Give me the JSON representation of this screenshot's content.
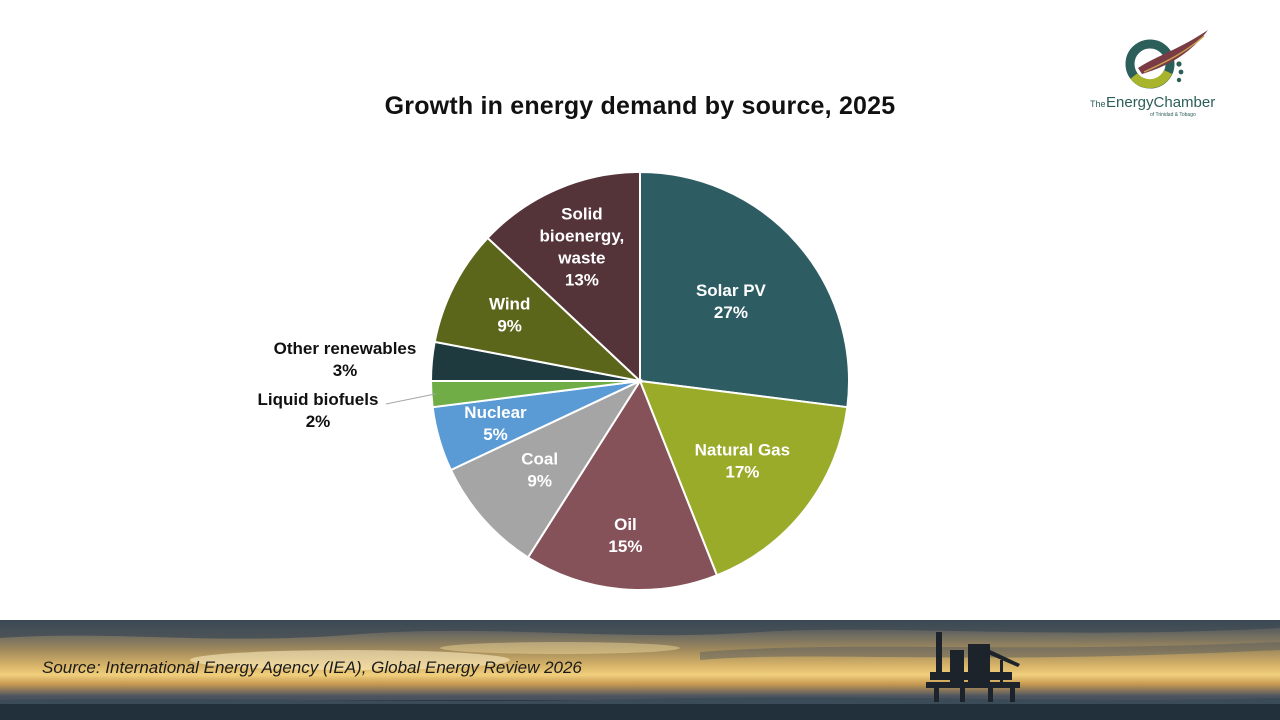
{
  "header": {
    "title": "Growth in energy demand by source, 2025"
  },
  "logo": {
    "line1_prefix": "The",
    "line1_name": "EnergyChamber",
    "line2": "of Trinidad & Tobago",
    "colors": {
      "ring": "#2c5e5a",
      "ring_accent": "#a8b42c",
      "swoosh": "#7a3b45",
      "text": "#2c5e5a"
    }
  },
  "footer": {
    "source": "Source: International Energy Agency (IEA), Global Energy Review 2026"
  },
  "chart_data": {
    "type": "pie",
    "title": "Growth in energy demand by source, 2025",
    "start_angle_deg": 0,
    "direction": "clockwise",
    "value_unit": "%",
    "legend": "none",
    "slices": [
      {
        "label": [
          "Solar PV"
        ],
        "value": 27,
        "pct_label": "27%",
        "color": "#2d5d63",
        "label_color": "#ffffff",
        "label_inside": true
      },
      {
        "label": [
          "Natural Gas"
        ],
        "value": 17,
        "pct_label": "17%",
        "color": "#9aab2a",
        "label_color": "#ffffff",
        "label_inside": true
      },
      {
        "label": [
          "Oil"
        ],
        "value": 15,
        "pct_label": "15%",
        "color": "#86525a",
        "label_color": "#ffffff",
        "label_inside": true
      },
      {
        "label": [
          "Coal"
        ],
        "value": 9,
        "pct_label": "9%",
        "color": "#a5a5a5",
        "label_color": "#ffffff",
        "label_inside": true
      },
      {
        "label": [
          "Nuclear"
        ],
        "value": 5,
        "pct_label": "5%",
        "color": "#5b9bd5",
        "label_color": "#ffffff",
        "label_inside": true
      },
      {
        "label": [
          "Liquid biofuels"
        ],
        "value": 2,
        "pct_label": "2%",
        "color": "#70ad47",
        "label_color": "#111111",
        "label_inside": false
      },
      {
        "label": [
          "Other renewables"
        ],
        "value": 3,
        "pct_label": "3%",
        "color": "#1e3a3e",
        "label_color": "#111111",
        "label_inside": false
      },
      {
        "label": [
          "Wind"
        ],
        "value": 9,
        "pct_label": "9%",
        "color": "#5c661b",
        "label_color": "#ffffff",
        "label_inside": true
      },
      {
        "label": [
          "Solid",
          "bioenergy,",
          "waste"
        ],
        "value": 13,
        "pct_label": "13%",
        "color": "#543439",
        "label_color": "#ffffff",
        "label_inside": true
      }
    ]
  }
}
